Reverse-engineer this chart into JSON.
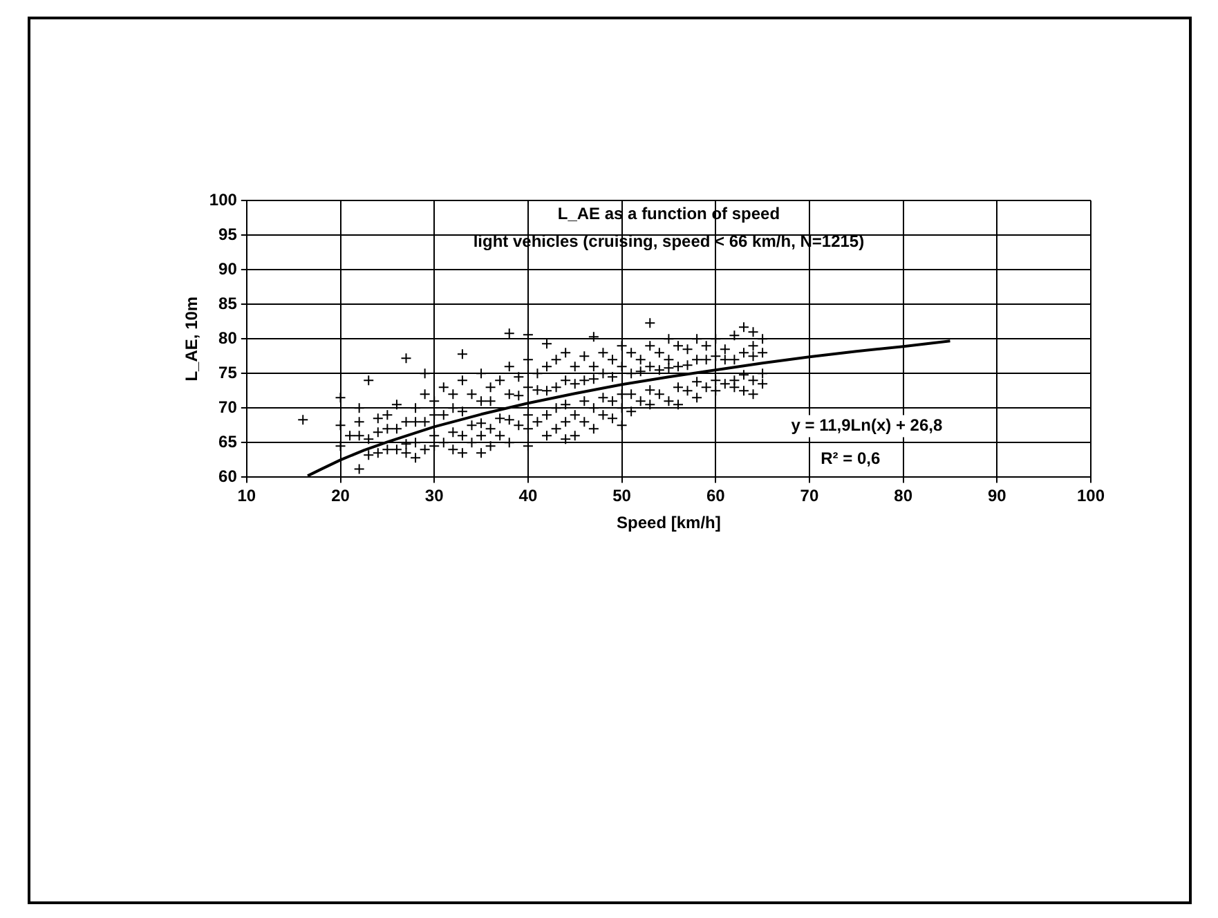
{
  "chart_data": {
    "type": "scatter",
    "title": "L_AE as a function of speed",
    "subtitle": "light vehicles (cruising, speed < 66 km/h, N=1215)",
    "xlabel": "Speed [km/h]",
    "ylabel": "L_AE, 10m",
    "annotations": [
      "y = 11,9Ln(x) + 26,8",
      "R² = 0,6"
    ],
    "xlim": [
      10,
      100
    ],
    "xticks": [
      10,
      20,
      30,
      40,
      50,
      60,
      70,
      80,
      90,
      100
    ],
    "ylim": [
      60,
      100
    ],
    "yticks": [
      60,
      65,
      70,
      75,
      80,
      85,
      90,
      95,
      100
    ],
    "grid": true,
    "legend": false,
    "marker": "cross",
    "series": [
      {
        "color": "#000000",
        "x": [
          16,
          20,
          20,
          20,
          21,
          22,
          22,
          22,
          22,
          23,
          23,
          23,
          24,
          24,
          24,
          25,
          25,
          25,
          26,
          26,
          26,
          27,
          27,
          27,
          27,
          28,
          28,
          28,
          28,
          29,
          29,
          29,
          29,
          30,
          30,
          30,
          30,
          31,
          31,
          31,
          32,
          32,
          32,
          32,
          33,
          33,
          33,
          33,
          33,
          34,
          34,
          34,
          35,
          35,
          35,
          35,
          35,
          36,
          36,
          36,
          36,
          37,
          37,
          37,
          38,
          38,
          38,
          38,
          38,
          39,
          39,
          39,
          40,
          40,
          40,
          40,
          40,
          40,
          41,
          41,
          41,
          42,
          42,
          42,
          42,
          42,
          43,
          43,
          43,
          43,
          44,
          44,
          44,
          44,
          44,
          45,
          45,
          45,
          45,
          46,
          46,
          46,
          46,
          47,
          47,
          47,
          47,
          47,
          48,
          48,
          48,
          48,
          49,
          49,
          49,
          49,
          50,
          50,
          50,
          50,
          50,
          51,
          51,
          51,
          51,
          52,
          52,
          52,
          53,
          53,
          53,
          53,
          53,
          54,
          54,
          54,
          55,
          55,
          55,
          55,
          56,
          56,
          56,
          56,
          57,
          57,
          57,
          58,
          58,
          58,
          58,
          59,
          59,
          59,
          60,
          60,
          60,
          60,
          61,
          61,
          61,
          62,
          62,
          62,
          62,
          63,
          63,
          63,
          63,
          64,
          64,
          64,
          64,
          64,
          65,
          65,
          65,
          65
        ],
        "values": [
          68.3,
          71.5,
          64.5,
          67.5,
          66,
          70,
          66,
          61.2,
          68,
          74,
          65.5,
          63.2,
          66.5,
          68.5,
          63.5,
          64,
          67,
          69,
          70.5,
          64,
          67,
          77.2,
          68,
          64.8,
          63.5,
          70,
          68,
          62.8,
          65,
          75,
          72,
          68,
          64,
          71,
          69,
          66,
          64.5,
          73,
          69,
          65,
          72,
          70,
          66.5,
          64,
          77.8,
          74,
          69.5,
          66,
          63.5,
          72,
          67.5,
          65,
          75,
          71,
          67.8,
          66,
          63.5,
          73,
          71,
          67,
          64.5,
          74,
          68.5,
          66,
          80.8,
          76,
          72,
          68.3,
          65,
          74.5,
          71.8,
          67.5,
          80.6,
          77,
          73,
          69,
          67,
          64.5,
          75,
          72.6,
          68,
          79.3,
          76,
          72.5,
          69,
          66,
          77,
          73,
          70,
          67,
          78,
          74,
          70.5,
          68,
          65.5,
          76,
          73.5,
          69,
          66,
          77.5,
          74,
          71,
          68,
          80.3,
          76,
          74.2,
          70,
          67,
          78,
          75,
          71.5,
          69,
          77,
          74.5,
          71,
          68.5,
          79,
          76,
          72,
          70,
          67.5,
          78,
          75,
          72,
          69.5,
          77,
          75.3,
          71,
          82.3,
          79,
          76,
          72.6,
          70.5,
          78,
          75.5,
          72,
          80,
          77,
          75.8,
          71,
          79,
          76,
          73,
          70.5,
          78.5,
          76.2,
          72.5,
          80,
          77,
          73.8,
          71.5,
          79,
          77,
          73,
          80,
          77.5,
          74,
          72.5,
          78.5,
          77,
          73.5,
          80.5,
          77,
          74,
          73,
          81.7,
          78,
          74.8,
          72.5,
          81,
          79,
          77.5,
          74,
          72,
          80,
          78,
          75,
          73.5
        ]
      },
      {
        "type": "line",
        "marker": "none",
        "color": "#000000",
        "x": [
          16.5,
          18,
          20,
          22.5,
          25,
          27.5,
          30,
          35,
          40,
          45,
          50,
          55,
          60,
          65,
          70,
          75,
          80,
          85
        ],
        "values": [
          60.2,
          61.2,
          62.5,
          63.9,
          65.1,
          66.2,
          67.3,
          69.1,
          70.7,
          72.1,
          73.4,
          74.5,
          75.5,
          76.5,
          77.4,
          78.2,
          78.9,
          79.7
        ]
      }
    ]
  }
}
